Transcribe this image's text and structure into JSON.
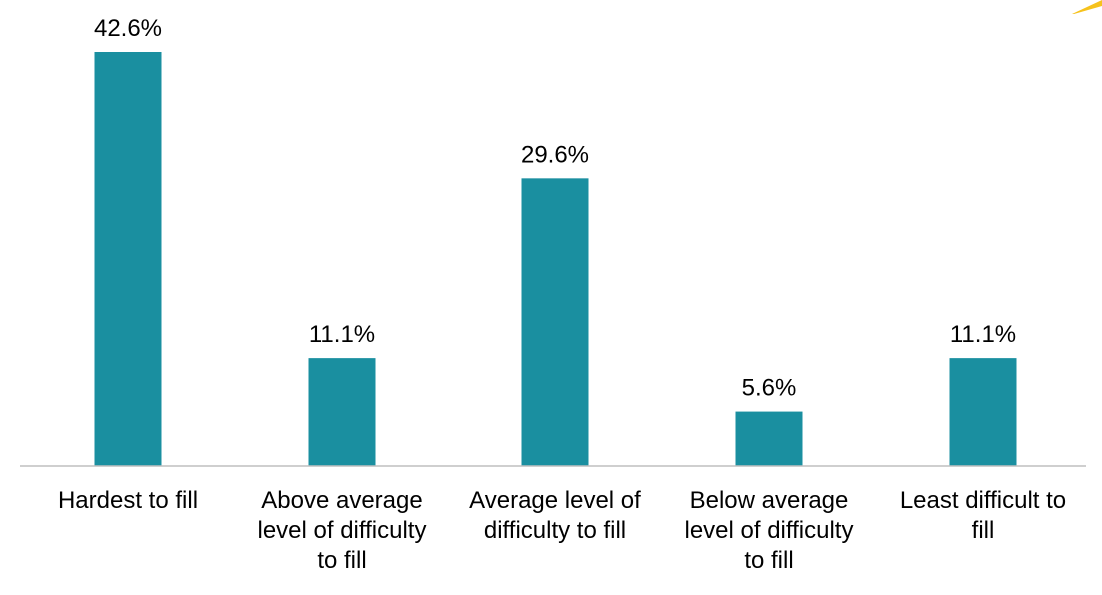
{
  "chart_data": {
    "type": "bar",
    "categories": [
      [
        "Hardest to fill"
      ],
      [
        "Above average",
        "level of difficulty",
        "to fill"
      ],
      [
        "Average level of",
        "difficulty to fill"
      ],
      [
        "Below average",
        "level of difficulty",
        "to fill"
      ],
      [
        "Least difficult to",
        "fill"
      ]
    ],
    "values": [
      42.6,
      11.1,
      29.6,
      5.6,
      11.1
    ],
    "value_labels": [
      "42.6%",
      "11.1%",
      "29.6%",
      "5.6%",
      "11.1%"
    ],
    "ylim": [
      0,
      42.6
    ],
    "grid": false,
    "legend": "none",
    "title": "",
    "xlabel": "",
    "ylabel": ""
  },
  "colors": {
    "bar": "#1a8fa0",
    "axis": "#bfbfbf",
    "text": "#000000",
    "accent": "#f6c21c"
  }
}
